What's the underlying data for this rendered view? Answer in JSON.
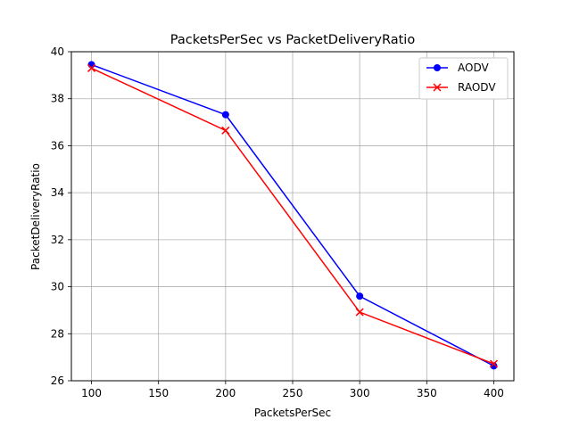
{
  "chart_data": {
    "type": "line",
    "title": "PacketsPerSec vs PacketDeliveryRatio",
    "xlabel": "PacketsPerSec",
    "ylabel": "PacketDeliveryRatio",
    "x": [
      100,
      200,
      300,
      400
    ],
    "xlim": [
      85,
      415
    ],
    "ylim": [
      26,
      40
    ],
    "xticks": [
      100,
      150,
      200,
      250,
      300,
      350,
      400
    ],
    "yticks": [
      26,
      28,
      30,
      32,
      34,
      36,
      38,
      40
    ],
    "grid": true,
    "legend_position": "top-right",
    "series": [
      {
        "name": "AODV",
        "values": [
          39.45,
          37.32,
          29.6,
          26.63
        ],
        "color": "#0000ff",
        "marker": "circle"
      },
      {
        "name": "RAODV",
        "values": [
          39.3,
          36.65,
          28.92,
          26.72
        ],
        "color": "#ff0000",
        "marker": "x"
      }
    ]
  }
}
